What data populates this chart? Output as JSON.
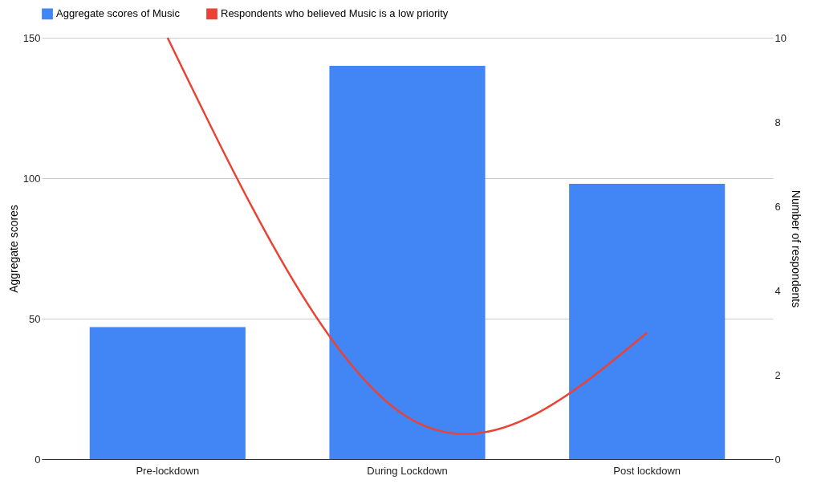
{
  "chart_data": {
    "type": "bar",
    "categories": [
      "Pre-lockdown",
      "During Lockdown",
      "Post lockdown"
    ],
    "series": [
      {
        "name": "Aggregate scores of Music",
        "color": "#4285f4",
        "values": [
          47,
          140,
          98
        ]
      },
      {
        "name": "Respondents who believed Music is a low priority",
        "type": "line",
        "axis": "y2",
        "color": "#ea4335",
        "values": [
          10,
          1,
          3
        ]
      }
    ],
    "ylabel": "Aggregate scores",
    "y2label": "Number of respondents",
    "ylim": [
      0,
      150
    ],
    "yticks": [
      0,
      50,
      100,
      150
    ],
    "y2lim": [
      0,
      10
    ],
    "y2ticks": [
      0,
      2,
      4,
      6,
      8,
      10
    ],
    "grid": "y",
    "legend": "top left"
  }
}
